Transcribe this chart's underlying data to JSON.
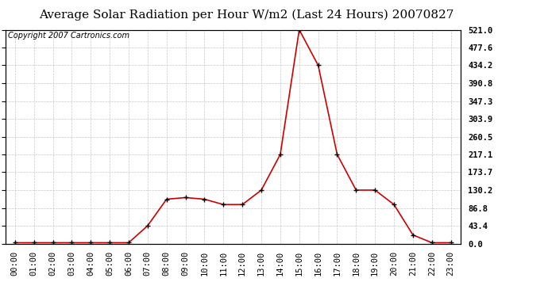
{
  "title": "Average Solar Radiation per Hour W/m2 (Last 24 Hours) 20070827",
  "copyright": "Copyright 2007 Cartronics.com",
  "x_labels": [
    "00:00",
    "01:00",
    "02:00",
    "03:00",
    "04:00",
    "05:00",
    "06:00",
    "07:00",
    "08:00",
    "09:00",
    "10:00",
    "11:00",
    "12:00",
    "13:00",
    "14:00",
    "15:00",
    "16:00",
    "17:00",
    "18:00",
    "19:00",
    "20:00",
    "21:00",
    "22:00",
    "23:00"
  ],
  "y_values": [
    2.0,
    2.0,
    2.0,
    2.0,
    2.0,
    2.0,
    2.0,
    43.4,
    108.0,
    112.0,
    108.0,
    95.0,
    95.0,
    130.2,
    217.1,
    521.0,
    434.2,
    217.1,
    130.2,
    130.2,
    95.0,
    21.0,
    2.0,
    2.0
  ],
  "line_color": "#cc0000",
  "marker_color": "#000000",
  "bg_color": "#ffffff",
  "grid_color": "#c8c8c8",
  "title_fontsize": 11,
  "copyright_fontsize": 7,
  "tick_label_fontsize": 7.5,
  "ytick_values": [
    0.0,
    43.4,
    86.8,
    130.2,
    173.7,
    217.1,
    260.5,
    303.9,
    347.3,
    390.8,
    434.2,
    477.6,
    521.0
  ],
  "ymax": 521.0,
  "ymin": 0.0
}
